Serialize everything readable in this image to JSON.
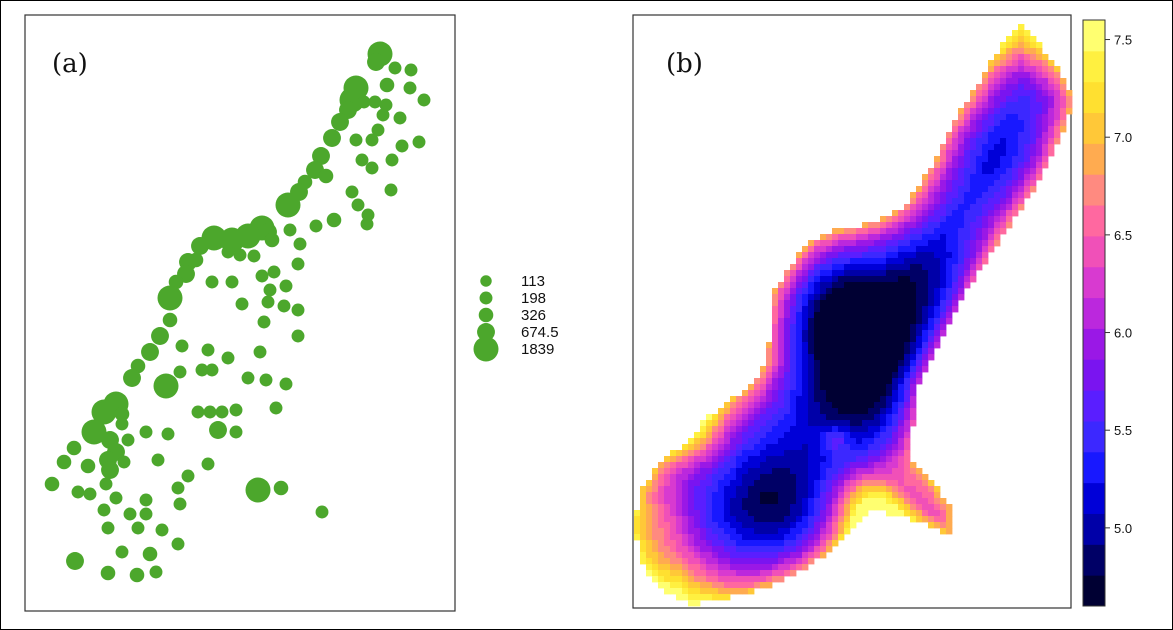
{
  "chart_data": [
    {
      "type": "scatter",
      "panel_label": "(a)",
      "legend": {
        "labels": [
          "113",
          "198",
          "326",
          "674.5",
          "1839"
        ],
        "values": [
          113,
          198,
          326,
          674.5,
          1839
        ]
      },
      "marker_color": "#4ca72c",
      "grid": false
    },
    {
      "type": "heatmap",
      "panel_label": "(b)",
      "colorbar": {
        "ticks": [
          "7.5",
          "7.0",
          "6.5",
          "6.0",
          "5.5",
          "5.0"
        ],
        "tick_values": [
          7.5,
          7.0,
          6.5,
          6.0,
          5.5,
          5.0
        ],
        "range": [
          4.6,
          7.6
        ],
        "colors": [
          "#000033",
          "#000066",
          "#0000a8",
          "#0000d8",
          "#1818ff",
          "#3c28ff",
          "#5a1eff",
          "#7a14f0",
          "#9a18e6",
          "#bb28dd",
          "#d83ad0",
          "#f050b8",
          "#ff68a0",
          "#ff8a80",
          "#ffab50",
          "#ffc838",
          "#ffe030",
          "#fff040",
          "#ffff70"
        ]
      },
      "grid": false
    }
  ]
}
